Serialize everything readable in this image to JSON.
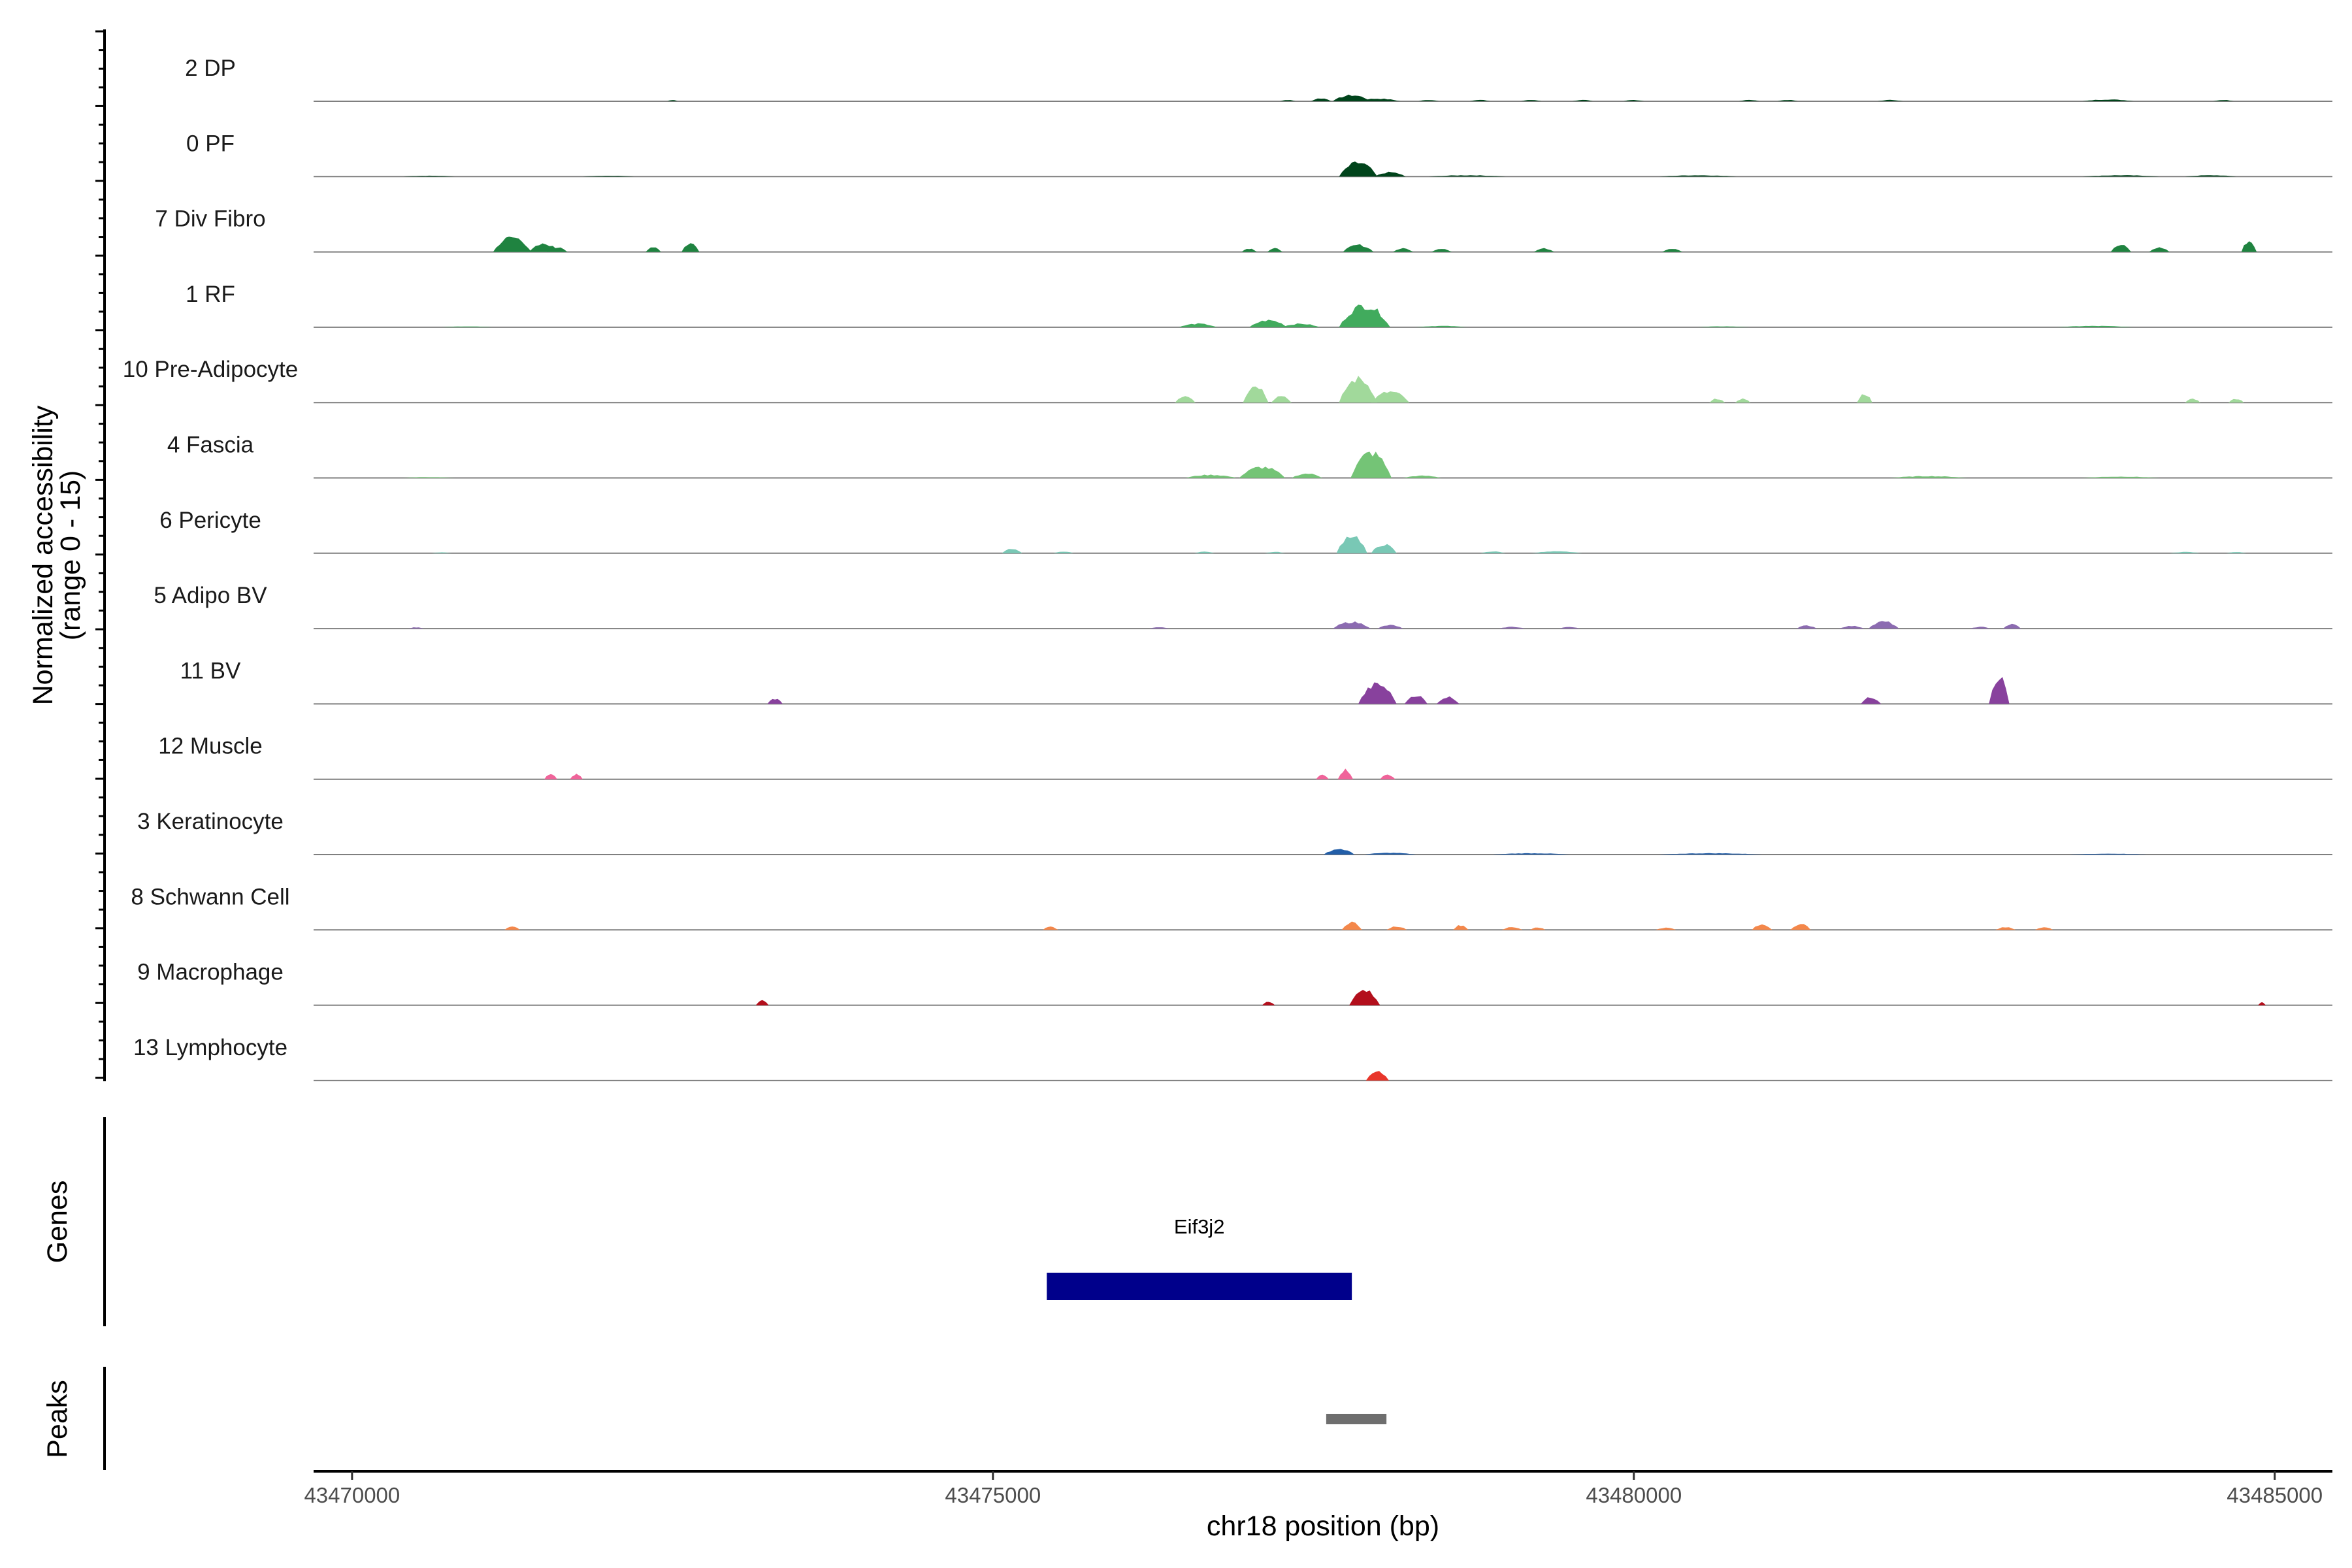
{
  "chart_data": {
    "type": "area",
    "title": "",
    "xlabel": "chr18 position (bp)",
    "ylabel": "Normalized accessibility\n(range 0 - 15)",
    "y_range": [
      0,
      15
    ],
    "xlim": [
      43469700,
      43485450
    ],
    "x_ticks": [
      43470000,
      43475000,
      43480000,
      43485000
    ],
    "x_tick_labels": [
      "43470000",
      "43475000",
      "43480000",
      "43485000"
    ],
    "tracks": [
      {
        "name": "2 DP",
        "color": "#00441b",
        "peaks": [
          [
            43472500,
            40,
            0.3
          ],
          [
            43477300,
            60,
            0.3
          ],
          [
            43477560,
            80,
            0.7
          ],
          [
            43477800,
            150,
            1.4
          ],
          [
            43478000,
            180,
            0.6
          ],
          [
            43478400,
            80,
            0.3
          ],
          [
            43478800,
            80,
            0.3
          ],
          [
            43479200,
            80,
            0.3
          ],
          [
            43479600,
            80,
            0.3
          ],
          [
            43480000,
            80,
            0.3
          ],
          [
            43480900,
            80,
            0.3
          ],
          [
            43481200,
            80,
            0.3
          ],
          [
            43482000,
            100,
            0.3
          ],
          [
            43483700,
            200,
            0.4
          ],
          [
            43484600,
            80,
            0.3
          ]
        ]
      },
      {
        "name": "0 PF",
        "color": "#00441b",
        "peaks": [
          [
            43470600,
            200,
            0.2
          ],
          [
            43472000,
            200,
            0.2
          ],
          [
            43477850,
            150,
            3.2
          ],
          [
            43478100,
            120,
            1.0
          ],
          [
            43478700,
            300,
            0.3
          ],
          [
            43480500,
            300,
            0.3
          ],
          [
            43483800,
            300,
            0.3
          ],
          [
            43484500,
            200,
            0.3
          ]
        ]
      },
      {
        "name": "7 Div Fibro",
        "color": "#1f8340",
        "peaks": [
          [
            43471250,
            150,
            3.4
          ],
          [
            43471500,
            120,
            1.8
          ],
          [
            43471600,
            80,
            1.0
          ],
          [
            43472350,
            60,
            1.2
          ],
          [
            43472640,
            70,
            2.0
          ],
          [
            43477000,
            60,
            0.8
          ],
          [
            43477200,
            60,
            0.8
          ],
          [
            43477850,
            120,
            1.6
          ],
          [
            43478200,
            80,
            0.8
          ],
          [
            43478500,
            80,
            0.8
          ],
          [
            43479300,
            80,
            0.8
          ],
          [
            43480300,
            80,
            0.8
          ],
          [
            43483800,
            80,
            1.6
          ],
          [
            43484100,
            80,
            1.0
          ],
          [
            43484800,
            60,
            2.5
          ]
        ]
      },
      {
        "name": "1 RF",
        "color": "#41ab5d",
        "peaks": [
          [
            43470900,
            200,
            0.2
          ],
          [
            43476600,
            150,
            0.8
          ],
          [
            43477150,
            150,
            1.6
          ],
          [
            43477400,
            150,
            0.8
          ],
          [
            43477900,
            200,
            5.0
          ],
          [
            43478500,
            200,
            0.3
          ],
          [
            43480700,
            200,
            0.2
          ],
          [
            43483600,
            300,
            0.3
          ]
        ]
      },
      {
        "name": "10 Pre-Adipocyte",
        "color": "#a1d99b",
        "peaks": [
          [
            43476500,
            80,
            1.6
          ],
          [
            43477050,
            100,
            4.0
          ],
          [
            43477250,
            80,
            1.6
          ],
          [
            43477850,
            150,
            5.5
          ],
          [
            43478100,
            150,
            2.5
          ],
          [
            43480650,
            60,
            0.9
          ],
          [
            43480850,
            60,
            0.9
          ],
          [
            43481800,
            60,
            2.0
          ],
          [
            43484360,
            60,
            0.9
          ],
          [
            43484700,
            60,
            0.9
          ]
        ]
      },
      {
        "name": "4 Fascia",
        "color": "#74c476",
        "peaks": [
          [
            43470600,
            200,
            0.2
          ],
          [
            43476700,
            200,
            0.7
          ],
          [
            43477100,
            180,
            2.5
          ],
          [
            43477450,
            120,
            1.0
          ],
          [
            43477950,
            160,
            5.8
          ],
          [
            43478350,
            150,
            0.5
          ],
          [
            43482300,
            300,
            0.4
          ],
          [
            43483800,
            300,
            0.3
          ]
        ]
      },
      {
        "name": "6 Pericyte",
        "color": "#79c8b5",
        "peaks": [
          [
            43470700,
            80,
            0.2
          ],
          [
            43475150,
            80,
            1.0
          ],
          [
            43475550,
            80,
            0.4
          ],
          [
            43476650,
            80,
            0.4
          ],
          [
            43477200,
            80,
            0.3
          ],
          [
            43477800,
            120,
            4.2
          ],
          [
            43478050,
            100,
            2.0
          ],
          [
            43478900,
            100,
            0.4
          ],
          [
            43479400,
            200,
            0.4
          ],
          [
            43484300,
            120,
            0.3
          ],
          [
            43484700,
            80,
            0.3
          ]
        ]
      },
      {
        "name": "5 Adipo BV",
        "color": "#8c6bb1",
        "peaks": [
          [
            43470500,
            60,
            0.3
          ],
          [
            43476300,
            80,
            0.3
          ],
          [
            43477800,
            150,
            1.5
          ],
          [
            43478100,
            100,
            0.8
          ],
          [
            43479050,
            100,
            0.4
          ],
          [
            43479500,
            80,
            0.4
          ],
          [
            43481350,
            80,
            0.7
          ],
          [
            43481700,
            100,
            0.6
          ],
          [
            43481950,
            120,
            1.6
          ],
          [
            43482700,
            80,
            0.4
          ],
          [
            43482950,
            70,
            1.0
          ]
        ]
      },
      {
        "name": "11 BV",
        "color": "#88419d",
        "peaks": [
          [
            43473300,
            60,
            1.2
          ],
          [
            43478000,
            150,
            4.5
          ],
          [
            43478300,
            90,
            2.0
          ],
          [
            43478550,
            90,
            1.6
          ],
          [
            43481850,
            80,
            1.5
          ],
          [
            43482850,
            80,
            6.3
          ]
        ]
      },
      {
        "name": "12 Muscle",
        "color": "#f0649a",
        "peaks": [
          [
            43471550,
            50,
            1.1
          ],
          [
            43471750,
            50,
            1.1
          ],
          [
            43477570,
            50,
            1.0
          ],
          [
            43477750,
            60,
            2.2
          ],
          [
            43478080,
            60,
            1.1
          ]
        ]
      },
      {
        "name": "3 Keratinocyte",
        "color": "#225ea8",
        "peaks": [
          [
            43477700,
            120,
            1.3
          ],
          [
            43478100,
            200,
            0.4
          ],
          [
            43479200,
            300,
            0.3
          ],
          [
            43480600,
            400,
            0.3
          ],
          [
            43483700,
            300,
            0.2
          ]
        ]
      },
      {
        "name": "8 Schwann Cell",
        "color": "#f4874a",
        "peaks": [
          [
            43471250,
            60,
            0.9
          ],
          [
            43475450,
            60,
            0.7
          ],
          [
            43477800,
            80,
            1.8
          ],
          [
            43478150,
            80,
            0.8
          ],
          [
            43478650,
            60,
            1.1
          ],
          [
            43479050,
            80,
            0.6
          ],
          [
            43479250,
            60,
            0.6
          ],
          [
            43480250,
            80,
            0.5
          ],
          [
            43481000,
            80,
            1.2
          ],
          [
            43481300,
            80,
            1.4
          ],
          [
            43482900,
            80,
            0.6
          ],
          [
            43483200,
            70,
            0.6
          ]
        ]
      },
      {
        "name": "9 Macrophage",
        "color": "#b30f1c",
        "peaks": [
          [
            43473200,
            50,
            1.2
          ],
          [
            43477150,
            50,
            0.8
          ],
          [
            43477900,
            120,
            3.5
          ],
          [
            43484900,
            30,
            0.6
          ]
        ]
      },
      {
        "name": "13 Lymphocyte",
        "color": "#e8362b",
        "peaks": [
          [
            43478000,
            90,
            2.2
          ]
        ]
      }
    ],
    "genes": {
      "title": "Genes",
      "items": [
        {
          "name": "Eif3j2",
          "start": 43475420,
          "end": 43477800,
          "color": "#00008b"
        }
      ]
    },
    "peaks_track": {
      "title": "Peaks",
      "items": [
        {
          "start": 43477600,
          "end": 43478070,
          "color": "#6e6e6e"
        }
      ]
    }
  }
}
